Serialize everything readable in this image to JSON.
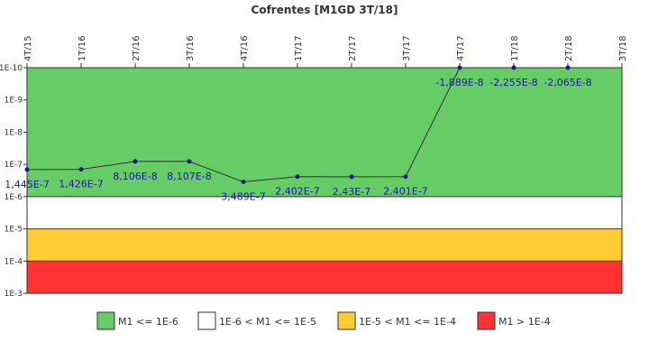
{
  "chart_data": {
    "type": "line",
    "title": "Cofrentes [M1GD 3T/18]",
    "xlabel": "",
    "ylabel": "",
    "y_scale": "log",
    "y_axis_inverted": true,
    "ylim": [
      1e-10,
      0.001
    ],
    "categories": [
      "4T/15",
      "1T/16",
      "2T/16",
      "3T/16",
      "4T/16",
      "1T/17",
      "2T/17",
      "3T/17",
      "4T/17",
      "1T/18",
      "2T/18",
      "3T/18"
    ],
    "y_tick_labels": [
      "1E-10",
      "1E-9",
      "1E-8",
      "1E-7",
      "1E-6",
      "1E-5",
      "1E-4",
      "1E-3"
    ],
    "series": [
      {
        "name": "",
        "values": [
          1.445e-07,
          1.426e-07,
          8.106e-08,
          8.107e-08,
          3.489e-07,
          2.402e-07,
          2.43e-07,
          2.401e-07,
          -1.889e-08,
          -2.255e-08,
          -2.065e-08,
          null
        ],
        "data_labels": [
          "1,445E-7",
          "1,426E-7",
          "8,106E-8",
          "8,107E-8",
          "3,489E-7",
          "2,402E-7",
          "2,43E-7",
          "2,401E-7",
          "-1,889E-8",
          "-2,255E-8",
          "-2,065E-8",
          ""
        ],
        "color": "#1a1a80"
      }
    ],
    "bands": [
      {
        "label": "M1 <= 1E-6",
        "from": 1e-10,
        "to": 1e-06,
        "color": "#66cc66"
      },
      {
        "label": "1E-6 < M1 <= 1E-5",
        "from": 1e-06,
        "to": 1e-05,
        "color": "#ffffff"
      },
      {
        "label": "1E-5 < M1 <= 1E-4",
        "from": 1e-05,
        "to": 0.0001,
        "color": "#ffcc33"
      },
      {
        "label": "M1 > 1E-4",
        "from": 0.0001,
        "to": 0.001,
        "color": "#ff3333"
      }
    ],
    "legend_position": "bottom",
    "grid": false
  }
}
